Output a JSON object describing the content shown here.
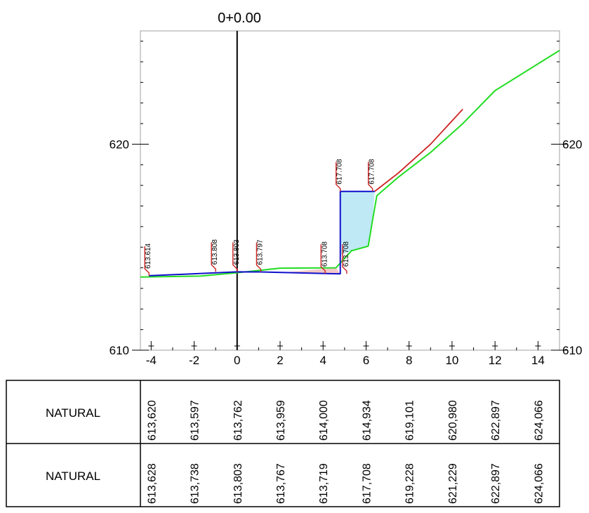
{
  "section_title": "0+0.00",
  "colors": {
    "ground": "#22dd22",
    "design": "#1010cc",
    "slope": "#cc2222",
    "fill_area": "#bfe9f5",
    "cut_area": "#f2c7c7",
    "frame": "#a0a0a0"
  },
  "chart_data": {
    "type": "line",
    "title": "0+0.00",
    "x_ticks": [
      "-4",
      "-2",
      "0",
      "2",
      "4",
      "6",
      "8",
      "10",
      "12",
      "14"
    ],
    "y_ticks": [
      "610",
      "620"
    ],
    "xlim": [
      -4.5,
      15
    ],
    "ylim": [
      610,
      625.5
    ],
    "series": [
      {
        "key": "natural",
        "x": [
          -4.5,
          -1.7,
          0,
          2,
          4.6,
          5.3,
          5.3,
          6.1,
          6.3,
          6.5,
          7.5,
          9.0,
          10.5,
          12.0,
          15.0
        ],
        "y": [
          613.55,
          613.6,
          613.76,
          613.98,
          614.0,
          614.8,
          614.82,
          615.05,
          616.3,
          617.5,
          618.4,
          619.6,
          621.0,
          622.6,
          624.55
        ]
      },
      {
        "key": "design",
        "x": [
          -4.1,
          0,
          1.1,
          4.6,
          4.6,
          4.8,
          4.8,
          6.4
        ],
        "y": [
          613.614,
          613.803,
          613.797,
          613.708,
          613.708,
          613.708,
          617.708,
          617.708
        ]
      },
      {
        "key": "cut_slope",
        "x": [
          6.4,
          7.5,
          9.0,
          10.5
        ],
        "y": [
          617.708,
          618.6,
          620.0,
          621.7
        ]
      }
    ],
    "elevation_labels": [
      {
        "x": -4.1,
        "y": 613.614,
        "text": "613.614"
      },
      {
        "x": -1.0,
        "y": 613.808,
        "text": "613.808"
      },
      {
        "x": 0.0,
        "y": 613.803,
        "text": "613.803"
      },
      {
        "x": 1.1,
        "y": 613.797,
        "text": "613.797"
      },
      {
        "x": 4.1,
        "y": 613.708,
        "text": "613.708"
      },
      {
        "x": 5.1,
        "y": 613.708,
        "text": "613.708"
      },
      {
        "x": 4.8,
        "y": 617.708,
        "text": "617.708"
      },
      {
        "x": 6.3,
        "y": 617.708,
        "text": "617.708"
      }
    ]
  },
  "bands": [
    {
      "label": "NATURAL",
      "values": [
        "613,620",
        "613,597",
        "613,762",
        "613,959",
        "614,000",
        "614,934",
        "619,101",
        "620,980",
        "622,897",
        "624,066"
      ]
    },
    {
      "label": "NATURAL",
      "values": [
        "613,628",
        "613,738",
        "613,803",
        "613,767",
        "613,719",
        "617,708",
        "619,228",
        "621,229",
        "622,897",
        "624,066"
      ]
    }
  ]
}
